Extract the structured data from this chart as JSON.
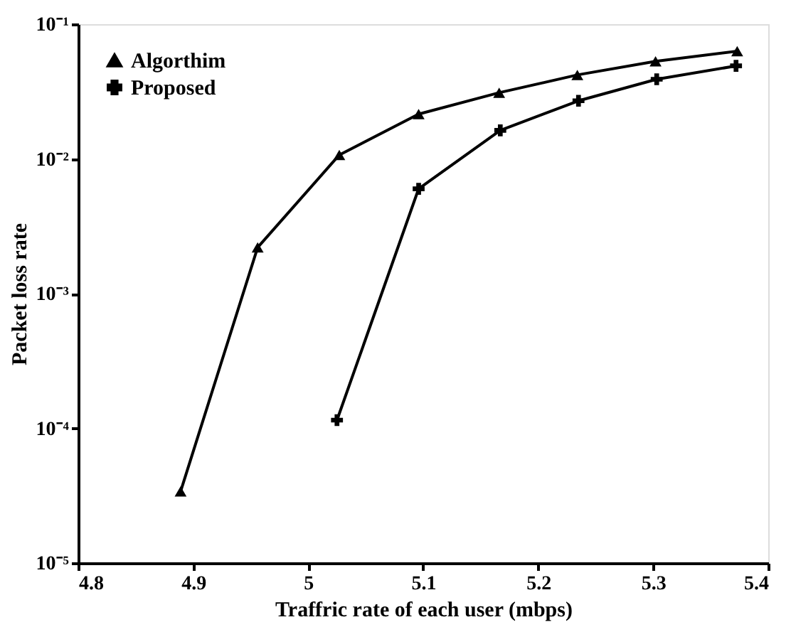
{
  "chart_data": {
    "type": "line",
    "xlabel": "Traffric rate of each user (mbps)",
    "ylabel": "Packet loss rate",
    "series": [
      {
        "name": "Algorthim",
        "color": "#000000",
        "marker": "triangle",
        "x": [
          4.889,
          4.956,
          5.027,
          5.096,
          5.166,
          5.234,
          5.302,
          5.373
        ],
        "values": [
          3.4e-05,
          0.0022,
          0.0107,
          0.0215,
          0.031,
          0.042,
          0.053,
          0.063
        ]
      },
      {
        "name": "Proposed",
        "color": "#000000",
        "marker": "cross",
        "x": [
          5.025,
          5.096,
          5.167,
          5.235,
          5.303,
          5.372
        ],
        "values": [
          0.000115,
          0.006,
          0.0163,
          0.027,
          0.039,
          0.049
        ]
      }
    ],
    "xlim": [
      4.8,
      5.4
    ],
    "xticks": [
      4.8,
      4.9,
      5,
      5.1,
      5.2,
      5.3,
      5.4
    ],
    "ylim": [
      1e-05,
      0.1
    ],
    "log": "y",
    "yticks": [
      {
        "value": 1e-05,
        "label": "10⁻⁵"
      },
      {
        "value": 0.0001,
        "label": "10⁻⁴"
      },
      {
        "value": 0.001,
        "label": "10⁻³"
      },
      {
        "value": 0.01,
        "label": "10⁻²"
      },
      {
        "value": 0.1,
        "label": "10⁻¹"
      }
    ],
    "grid": false,
    "legend": "top left",
    "line_style": "solid"
  }
}
